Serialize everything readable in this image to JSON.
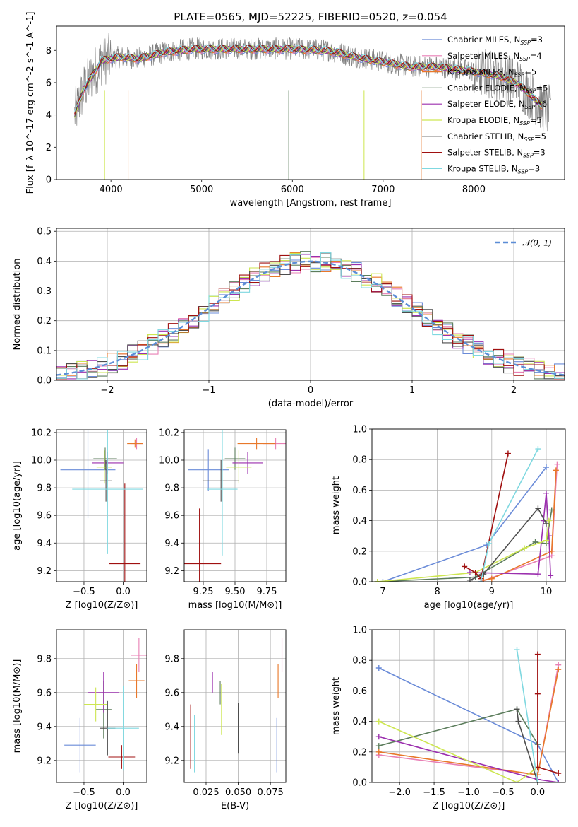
{
  "figure": {
    "title": "PLATE=0565, MJD=52225, FIBERID=0520, z=0.054"
  },
  "colors": {
    "Chabrier MILES": "#6a8bd8",
    "Salpeter MILES": "#e87fb5",
    "Kroupa MILES": "#e8782a",
    "Chabrier ELODIE": "#5c7d5c",
    "Salpeter ELODIE": "#9b2fae",
    "Kroupa ELODIE": "#cde650",
    "Chabrier STELIB": "#4d4d4d",
    "Salpeter STELIB": "#a01010",
    "Kroupa STELIB": "#7fd8e0",
    "data": "#808080",
    "gaussian": "#5b8dd6"
  },
  "legend_spectrum": [
    {
      "name": "Chabrier MILES",
      "n": "3"
    },
    {
      "name": "Salpeter MILES",
      "n": "4"
    },
    {
      "name": "Kroupa MILES",
      "n": "5"
    },
    {
      "name": "Chabrier ELODIE",
      "n": "5"
    },
    {
      "name": "Salpeter ELODIE",
      "n": "6"
    },
    {
      "name": "Kroupa ELODIE",
      "n": "5"
    },
    {
      "name": "Chabrier STELIB",
      "n": "5"
    },
    {
      "name": "Salpeter STELIB",
      "n": "3"
    },
    {
      "name": "Kroupa STELIB",
      "n": "3"
    }
  ],
  "chart_data": [
    {
      "id": "spectrum",
      "type": "line",
      "xlabel": "wavelength [Angstrom, rest frame]",
      "ylabel": "Flux [f_λ 10^-17 erg cm^-2 s^-1 A^-1]",
      "xlim": [
        3400,
        9000
      ],
      "ylim": [
        0,
        9.5
      ],
      "xticks": [
        4000,
        5000,
        6000,
        7000,
        8000
      ],
      "yticks": [
        0,
        2,
        4,
        6,
        8
      ],
      "continuum": [
        [
          3600,
          4.0
        ],
        [
          3700,
          5.6
        ],
        [
          3900,
          7.4
        ],
        [
          4100,
          7.6
        ],
        [
          4300,
          7.5
        ],
        [
          4600,
          7.9
        ],
        [
          4900,
          8.1
        ],
        [
          5200,
          8.1
        ],
        [
          5600,
          8.1
        ],
        [
          6000,
          8.1
        ],
        [
          6400,
          8.0
        ],
        [
          6700,
          7.6
        ],
        [
          7000,
          7.3
        ],
        [
          7300,
          7.0
        ],
        [
          7600,
          7.0
        ],
        [
          8000,
          6.7
        ],
        [
          8300,
          6.4
        ],
        [
          8500,
          5.9
        ],
        [
          8800,
          4.3
        ]
      ],
      "grid": false
    },
    {
      "id": "histogram",
      "type": "bar",
      "xlabel": "(data-model)/error",
      "ylabel": "Normed distribution",
      "xlim": [
        -2.5,
        2.5
      ],
      "ylim": [
        0,
        0.51
      ],
      "xticks": [
        -2,
        -1,
        0,
        1,
        2
      ],
      "yticks": [
        0.0,
        0.1,
        0.2,
        0.3,
        0.4,
        0.5
      ],
      "legend": "𝒩(0, 1)",
      "bin_width": 0.1,
      "grid": true
    },
    {
      "id": "age-vs-Z",
      "type": "scatter",
      "xlabel": "Z [log10(Z/Z⊙)]",
      "ylabel": "age [log10(age/yr)]",
      "xlim": [
        -0.85,
        0.3
      ],
      "ylim": [
        9.12,
        10.22
      ],
      "xticks": [
        -0.5,
        0.0
      ],
      "yticks": [
        9.2,
        9.4,
        9.6,
        9.8,
        10.0,
        10.2
      ],
      "points": [
        {
          "model": "Chabrier MILES",
          "x": -0.45,
          "xerr": 0.35,
          "y": 9.93,
          "yerr": 0.35
        },
        {
          "model": "Salpeter MILES",
          "x": 0.17,
          "xerr": 0.08,
          "y": 10.12,
          "yerr": 0.04
        },
        {
          "model": "Kroupa MILES",
          "x": 0.15,
          "xerr": 0.1,
          "y": 10.12,
          "yerr": 0.03
        },
        {
          "model": "Chabrier ELODIE",
          "x": -0.23,
          "xerr": 0.15,
          "y": 10.01,
          "yerr": 0.08
        },
        {
          "model": "Salpeter ELODIE",
          "x": -0.2,
          "xerr": 0.2,
          "y": 9.98,
          "yerr": 0.08
        },
        {
          "model": "Kroupa ELODIE",
          "x": -0.24,
          "xerr": 0.1,
          "y": 9.95,
          "yerr": 0.12
        },
        {
          "model": "Chabrier STELIB",
          "x": -0.22,
          "xerr": 0.08,
          "y": 9.85,
          "yerr": 0.15
        },
        {
          "model": "Salpeter STELIB",
          "x": 0.02,
          "xerr": 0.2,
          "y": 9.25,
          "yerr": 0.58
        },
        {
          "model": "Kroupa STELIB",
          "x": -0.2,
          "xerr": 0.45,
          "y": 9.79,
          "yerr": 0.47
        }
      ],
      "grid": true
    },
    {
      "id": "age-vs-mass",
      "type": "scatter",
      "xlabel": "mass [log10(M/M⊙)]",
      "ylabel": "",
      "xlim": [
        9.1,
        9.9
      ],
      "ylim": [
        9.12,
        10.22
      ],
      "xticks": [
        9.25,
        9.5,
        9.75
      ],
      "yticks": [
        9.2,
        9.4,
        9.6,
        9.8,
        10.0,
        10.2
      ],
      "points": [
        {
          "model": "Chabrier MILES",
          "x": 9.29,
          "xerr": 0.16,
          "y": 9.93,
          "yerr": 0.15
        },
        {
          "model": "Salpeter MILES",
          "x": 9.82,
          "xerr": 0.1,
          "y": 10.12,
          "yerr": 0.04
        },
        {
          "model": "Kroupa MILES",
          "x": 9.67,
          "xerr": 0.15,
          "y": 10.12,
          "yerr": 0.04
        },
        {
          "model": "Chabrier ELODIE",
          "x": 9.5,
          "xerr": 0.08,
          "y": 10.01,
          "yerr": 0.08
        },
        {
          "model": "Salpeter ELODIE",
          "x": 9.6,
          "xerr": 0.12,
          "y": 9.98,
          "yerr": 0.08
        },
        {
          "model": "Kroupa ELODIE",
          "x": 9.53,
          "xerr": 0.1,
          "y": 9.95,
          "yerr": 0.12
        },
        {
          "model": "Chabrier STELIB",
          "x": 9.39,
          "xerr": 0.14,
          "y": 9.85,
          "yerr": 0.15
        },
        {
          "model": "Salpeter STELIB",
          "x": 9.22,
          "xerr": 0.17,
          "y": 9.25,
          "yerr": 0.4
        },
        {
          "model": "Kroupa STELIB",
          "x": 9.4,
          "xerr": 0.12,
          "y": 9.79,
          "yerr": 0.48
        }
      ],
      "grid": true
    },
    {
      "id": "mass-weight-vs-age",
      "type": "line",
      "xlabel": "age [log10(age/yr)]",
      "ylabel": "mass weight",
      "xlim": [
        6.8,
        10.35
      ],
      "ylim": [
        0,
        1.0
      ],
      "xticks": [
        7,
        8,
        9,
        10
      ],
      "yticks": [
        0.0,
        0.2,
        0.4,
        0.6,
        0.8,
        1.0
      ],
      "series": [
        {
          "name": "Chabrier MILES",
          "x": [
            7.0,
            8.9,
            10.0
          ],
          "y": [
            0.0,
            0.24,
            0.75
          ]
        },
        {
          "name": "Salpeter MILES",
          "x": [
            8.8,
            10.1,
            10.2
          ],
          "y": [
            0.0,
            0.17,
            0.77
          ]
        },
        {
          "name": "Kroupa MILES",
          "x": [
            8.85,
            9.0,
            10.1,
            10.18
          ],
          "y": [
            0.01,
            0.02,
            0.2,
            0.73
          ]
        },
        {
          "name": "Chabrier ELODIE",
          "x": [
            6.9,
            8.7,
            9.8,
            10.0,
            10.1
          ],
          "y": [
            0.0,
            0.03,
            0.26,
            0.25,
            0.47
          ]
        },
        {
          "name": "Salpeter ELODIE",
          "x": [
            8.6,
            9.85,
            9.95,
            10.0,
            10.05,
            10.08
          ],
          "y": [
            0.06,
            0.05,
            0.4,
            0.58,
            0.3,
            0.04
          ]
        },
        {
          "name": "Kroupa ELODIE",
          "x": [
            6.9,
            8.7,
            9.6,
            10.0,
            10.05
          ],
          "y": [
            0.0,
            0.06,
            0.22,
            0.27,
            0.4
          ]
        },
        {
          "name": "Chabrier STELIB",
          "x": [
            8.6,
            8.85,
            9.85,
            10.0
          ],
          "y": [
            0.01,
            0.05,
            0.48,
            0.38
          ]
        },
        {
          "name": "Salpeter STELIB",
          "x": [
            8.5,
            8.7,
            8.8,
            9.3
          ],
          "y": [
            0.1,
            0.06,
            0.02,
            0.84
          ]
        },
        {
          "name": "Kroupa STELIB",
          "x": [
            8.8,
            8.95,
            9.85
          ],
          "y": [
            0.0,
            0.25,
            0.87
          ]
        }
      ],
      "grid": true
    },
    {
      "id": "mass-vs-Z",
      "type": "scatter",
      "xlabel": "Z [log10(Z/Z⊙)]",
      "ylabel": "mass [log10(M/M⊙)]",
      "xlim": [
        -0.85,
        0.3
      ],
      "ylim": [
        9.07,
        9.97
      ],
      "xticks": [
        -0.5,
        0.0
      ],
      "yticks": [
        9.2,
        9.4,
        9.6,
        9.8
      ],
      "points": [
        {
          "model": "Chabrier MILES",
          "x": -0.55,
          "xerr": 0.2,
          "y": 9.29,
          "yerr": 0.16
        },
        {
          "model": "Salpeter MILES",
          "x": 0.2,
          "xerr": 0.1,
          "y": 9.82,
          "yerr": 0.1
        },
        {
          "model": "Kroupa MILES",
          "x": 0.17,
          "xerr": 0.1,
          "y": 9.67,
          "yerr": 0.1
        },
        {
          "model": "Chabrier ELODIE",
          "x": -0.25,
          "xerr": 0.1,
          "y": 9.5,
          "yerr": 0.17
        },
        {
          "model": "Salpeter ELODIE",
          "x": -0.25,
          "xerr": 0.2,
          "y": 9.6,
          "yerr": 0.12
        },
        {
          "model": "Kroupa ELODIE",
          "x": -0.35,
          "xerr": 0.15,
          "y": 9.53,
          "yerr": 0.1
        },
        {
          "model": "Chabrier STELIB",
          "x": -0.2,
          "xerr": 0.1,
          "y": 9.39,
          "yerr": 0.16
        },
        {
          "model": "Salpeter STELIB",
          "x": -0.02,
          "xerr": 0.17,
          "y": 9.22,
          "yerr": 0.07
        },
        {
          "model": "Kroupa STELIB",
          "x": 0.0,
          "xerr": 0.2,
          "y": 9.39,
          "yerr": 0.25
        }
      ],
      "grid": true
    },
    {
      "id": "mass-vs-ebv",
      "type": "scatter",
      "xlabel": "E(B-V)",
      "ylabel": "",
      "xlim": [
        0.008,
        0.087
      ],
      "ylim": [
        9.07,
        9.97
      ],
      "xticks": [
        0.025,
        0.05,
        0.075
      ],
      "yticks": [
        9.2,
        9.4,
        9.6,
        9.8
      ],
      "points": [
        {
          "model": "Chabrier MILES",
          "x": 0.08,
          "xerr": 0,
          "y": 9.29,
          "yerr": 0.16
        },
        {
          "model": "Salpeter MILES",
          "x": 0.084,
          "xerr": 0,
          "y": 9.82,
          "yerr": 0.1
        },
        {
          "model": "Kroupa MILES",
          "x": 0.081,
          "xerr": 0,
          "y": 9.67,
          "yerr": 0.1
        },
        {
          "model": "Chabrier ELODIE",
          "x": 0.036,
          "xerr": 0,
          "y": 9.6,
          "yerr": 0.07
        },
        {
          "model": "Salpeter ELODIE",
          "x": 0.03,
          "xerr": 0,
          "y": 9.66,
          "yerr": 0.06
        },
        {
          "model": "Kroupa ELODIE",
          "x": 0.037,
          "xerr": 0,
          "y": 9.5,
          "yerr": 0.15
        },
        {
          "model": "Chabrier STELIB",
          "x": 0.05,
          "xerr": 0,
          "y": 9.39,
          "yerr": 0.15
        },
        {
          "model": "Salpeter STELIB",
          "x": 0.013,
          "xerr": 0,
          "y": 9.34,
          "yerr": 0.19
        },
        {
          "model": "Kroupa STELIB",
          "x": 0.016,
          "xerr": 0,
          "y": 9.3,
          "yerr": 0.17
        }
      ],
      "grid": true
    },
    {
      "id": "mass-weight-vs-Z",
      "type": "line",
      "xlabel": "Z [log10(Z/Z⊙)]",
      "ylabel": "mass weight",
      "xlim": [
        -2.4,
        0.4
      ],
      "ylim": [
        0,
        1.0
      ],
      "xticks": [
        -2.0,
        -1.5,
        -1.0,
        -0.5,
        0.0
      ],
      "yticks": [
        0.0,
        0.2,
        0.4,
        0.6,
        0.8,
        1.0
      ],
      "series": [
        {
          "name": "Chabrier MILES",
          "x": [
            -2.3,
            0.0,
            0.3
          ],
          "y": [
            0.75,
            0.25,
            0.0
          ]
        },
        {
          "name": "Salpeter MILES",
          "x": [
            -2.3,
            0.0,
            0.3
          ],
          "y": [
            0.18,
            0.05,
            0.77
          ]
        },
        {
          "name": "Kroupa MILES",
          "x": [
            -2.3,
            0.0,
            0.3
          ],
          "y": [
            0.2,
            0.05,
            0.74
          ]
        },
        {
          "name": "Chabrier ELODIE",
          "x": [
            -2.3,
            -0.3,
            0.0
          ],
          "y": [
            0.24,
            0.48,
            0.25
          ]
        },
        {
          "name": "Salpeter ELODIE",
          "x": [
            -2.3,
            0.0,
            0.3
          ],
          "y": [
            0.3,
            0.02,
            0.0
          ]
        },
        {
          "name": "Kroupa ELODIE",
          "x": [
            -2.3,
            -0.3,
            0.0
          ],
          "y": [
            0.4,
            0.0,
            0.1
          ]
        },
        {
          "name": "Chabrier STELIB",
          "x": [
            -0.3,
            -0.28,
            0.0
          ],
          "y": [
            0.48,
            0.4,
            0.0
          ]
        },
        {
          "name": "Salpeter STELIB",
          "x": [
            0.0,
            0.0,
            0.0,
            0.3
          ],
          "y": [
            0.84,
            0.58,
            0.1,
            0.06
          ]
        },
        {
          "name": "Kroupa STELIB",
          "x": [
            -0.3,
            0.0
          ],
          "y": [
            0.87,
            0.0
          ]
        }
      ],
      "grid": true
    }
  ]
}
